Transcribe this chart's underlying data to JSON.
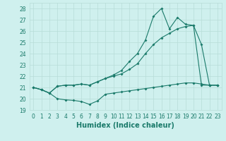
{
  "title": "",
  "xlabel": "Humidex (Indice chaleur)",
  "background_color": "#cff0ee",
  "grid_color": "#b8dcd8",
  "line_color": "#1a7a6a",
  "xlim": [
    -0.5,
    23.5
  ],
  "ylim": [
    19,
    28.5
  ],
  "x_ticks": [
    0,
    1,
    2,
    3,
    4,
    5,
    6,
    7,
    8,
    9,
    10,
    11,
    12,
    13,
    14,
    15,
    16,
    17,
    18,
    19,
    20,
    21,
    22,
    23
  ],
  "yticks": [
    19,
    20,
    21,
    22,
    23,
    24,
    25,
    26,
    27,
    28
  ],
  "series1_x": [
    0,
    1,
    2,
    3,
    4,
    5,
    6,
    7,
    8,
    9,
    10,
    11,
    12,
    13,
    14,
    15,
    16,
    17,
    18,
    19,
    20,
    21,
    22,
    23
  ],
  "series1_y": [
    21.0,
    20.8,
    20.5,
    20.0,
    19.9,
    19.85,
    19.75,
    19.5,
    19.8,
    20.4,
    20.5,
    20.6,
    20.7,
    20.8,
    20.9,
    21.0,
    21.1,
    21.2,
    21.3,
    21.4,
    21.4,
    21.3,
    21.2,
    21.2
  ],
  "series2_x": [
    0,
    1,
    2,
    3,
    4,
    5,
    6,
    7,
    8,
    9,
    10,
    11,
    12,
    13,
    14,
    15,
    16,
    17,
    18,
    19,
    20,
    21,
    22,
    23
  ],
  "series2_y": [
    21.0,
    20.8,
    20.5,
    21.1,
    21.2,
    21.2,
    21.3,
    21.2,
    21.5,
    21.8,
    22.0,
    22.2,
    22.6,
    23.1,
    24.0,
    24.8,
    25.4,
    25.8,
    26.2,
    26.4,
    26.5,
    21.2,
    21.2,
    21.2
  ],
  "series3_x": [
    0,
    1,
    2,
    3,
    4,
    5,
    6,
    7,
    8,
    9,
    10,
    11,
    12,
    13,
    14,
    15,
    16,
    17,
    18,
    19,
    20,
    21,
    22,
    23
  ],
  "series3_y": [
    21.0,
    20.8,
    20.5,
    21.1,
    21.2,
    21.2,
    21.3,
    21.2,
    21.5,
    21.8,
    22.1,
    22.5,
    23.3,
    24.0,
    25.2,
    27.3,
    28.0,
    26.2,
    27.2,
    26.6,
    26.5,
    24.8,
    21.2,
    21.2
  ],
  "tick_fontsize": 5.5,
  "label_fontsize": 7.0
}
